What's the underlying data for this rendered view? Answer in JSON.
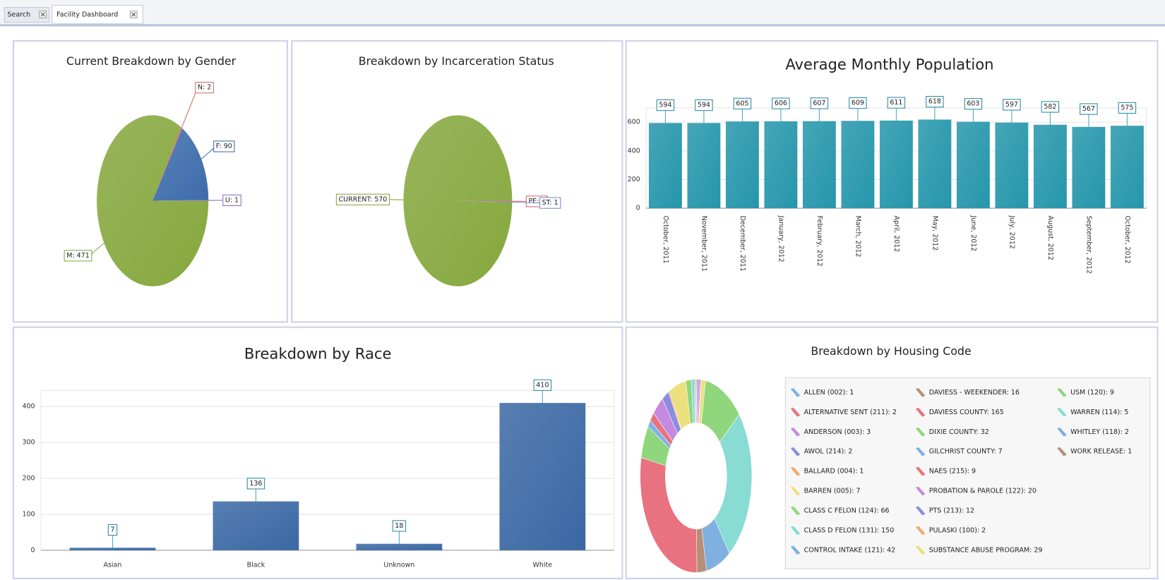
{
  "tabs": [
    "Search",
    "Facility Dashboard"
  ],
  "chart_data": [
    {
      "type": "pie",
      "title": "Current Breakdown by Gender",
      "values": [
        90,
        1,
        471,
        2
      ],
      "value_labels": [
        "F: 90",
        "U: 1",
        "M: 471",
        "N: 2"
      ],
      "colors": [
        "#3d6cab",
        "#8a70b4",
        "#86a83e",
        "#d46a6a"
      ]
    },
    {
      "type": "pie",
      "title": "Breakdown by Incarceration Status",
      "values": [
        1,
        1,
        570
      ],
      "value_labels": [
        "PE: 1",
        "ST: 1",
        "CURRENT: 570"
      ],
      "colors": [
        "#d46a6a",
        "#6f8fc4",
        "#86a83e"
      ]
    },
    {
      "type": "bar",
      "title": "Average Monthly Population",
      "categories": [
        "October, 2011",
        "November, 2011",
        "December, 2011",
        "January, 2012",
        "February, 2012",
        "March, 2012",
        "April, 2012",
        "May, 2012",
        "June, 2012",
        "July, 2012",
        "August, 2012",
        "September, 2012",
        "October, 2012"
      ],
      "values": [
        594,
        594,
        605,
        606,
        607,
        609,
        611,
        618,
        603,
        597,
        582,
        567,
        575
      ],
      "color": "#2596ab",
      "ylim": [
        0,
        700
      ],
      "yticks": [
        0,
        200,
        400,
        600
      ],
      "grid": true
    },
    {
      "type": "bar",
      "title": "Breakdown by Race",
      "categories": [
        "Asian",
        "Black",
        "Unknown",
        "White"
      ],
      "values": [
        7,
        136,
        18,
        410
      ],
      "color": "#3a68a4",
      "ylim": [
        0,
        445
      ],
      "yticks": [
        0,
        100,
        200,
        300,
        400
      ],
      "grid": true
    },
    {
      "type": "donut",
      "title": "Breakdown by Housing Code",
      "legend": true,
      "values": [
        1,
        2,
        3,
        2,
        1,
        7,
        66,
        150,
        42,
        16,
        165,
        32,
        7,
        9,
        20,
        12,
        2,
        29,
        9,
        5,
        2,
        1
      ],
      "value_labels": [
        "ALLEN (002): 1",
        "ALTERNATIVE SENT (211): 2",
        "ANDERSON (003): 3",
        "AWOL (214): 2",
        "BALLARD (004): 1",
        "BARREN (005): 7",
        "CLASS C FELON (124): 66",
        "CLASS D FELON (131): 150",
        "CONTROL INTAKE (121): 42",
        "DAVIESS - WEEKENDER: 16",
        "DAVIESS COUNTY: 165",
        "DIXIE COUNTY: 32",
        "GILCHRIST COUNTY: 7",
        "NAES (215): 9",
        "PROBATION & PAROLE (122): 20",
        "PTS (213): 12",
        "PULASKI (100): 2",
        "SUBSTANCE ABUSE PROGRAM: 29",
        "USM (120): 9",
        "WARREN (114): 5",
        "WHITLEY (118): 2",
        "WORK RELEASE: 1"
      ],
      "colors": [
        "#7fb2e6",
        "#e8727f",
        "#c58ae0",
        "#8c8ce0",
        "#f0aa6c",
        "#ebe07c",
        "#90d67c",
        "#88dcd4",
        "#7fb0e0",
        "#b59078",
        "#e8727f",
        "#90d67c",
        "#7fb2e6",
        "#e8727f",
        "#c58ae0",
        "#8c8ce0",
        "#f0aa6c",
        "#ebe07c",
        "#90d67c",
        "#88dcd4",
        "#7fb0e0",
        "#b59078"
      ]
    }
  ]
}
